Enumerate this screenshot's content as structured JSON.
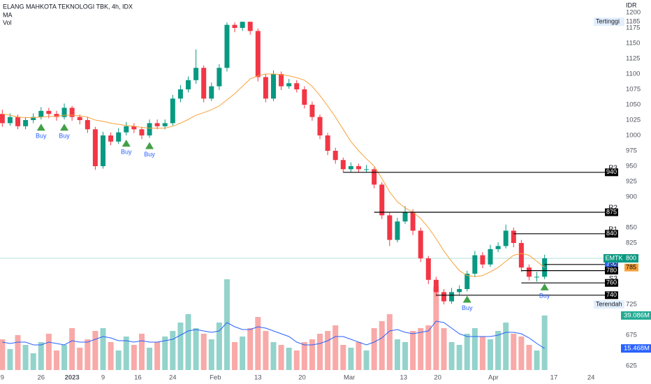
{
  "chart_data": {
    "type": "candlestick",
    "title": "ELANG MAHKOTA TEKNOLOGI TBK, 4h, IDX",
    "indicator_labels": [
      "MA",
      "Vol"
    ],
    "currency": "IDR",
    "ylim": [
      625,
      1200
    ],
    "yticks": [
      1200,
      1175,
      1150,
      1125,
      1100,
      1075,
      1050,
      1025,
      1000,
      975,
      950,
      925,
      900,
      850,
      825,
      675,
      625
    ],
    "xlim": [
      -0.3,
      79.5
    ],
    "xticks": [
      {
        "value": 0,
        "label": "9"
      },
      {
        "value": 5,
        "label": "26"
      },
      {
        "value": 9,
        "label": "2023"
      },
      {
        "value": 13,
        "label": "9"
      },
      {
        "value": 17.5,
        "label": "16"
      },
      {
        "value": 22,
        "label": "24"
      },
      {
        "value": 27.5,
        "label": "Feb"
      },
      {
        "value": 33,
        "label": "13"
      },
      {
        "value": 38.7,
        "label": "20"
      },
      {
        "value": 44.8,
        "label": "Mar"
      },
      {
        "value": 51.8,
        "label": "13"
      },
      {
        "value": 56.2,
        "label": "20"
      },
      {
        "value": 63.4,
        "label": "Apr"
      },
      {
        "value": 71.2,
        "label": "17"
      },
      {
        "value": 76,
        "label": "24"
      }
    ],
    "up_color": "#089981",
    "down_color": "#f23645",
    "ohlc": [
      [
        1035,
        1042,
        1014,
        1020
      ],
      [
        1020,
        1036,
        1016,
        1030
      ],
      [
        1030,
        1034,
        1010,
        1015
      ],
      [
        1015,
        1030,
        1010,
        1025
      ],
      [
        1025,
        1036,
        1020,
        1030
      ],
      [
        1030,
        1046,
        1026,
        1040
      ],
      [
        1040,
        1045,
        1028,
        1035
      ],
      [
        1035,
        1040,
        1024,
        1030
      ],
      [
        1030,
        1052,
        1026,
        1045
      ],
      [
        1045,
        1048,
        1024,
        1030
      ],
      [
        1030,
        1034,
        1018,
        1025
      ],
      [
        1025,
        1030,
        1004,
        1010
      ],
      [
        1010,
        1014,
        944,
        950
      ],
      [
        950,
        1006,
        946,
        1000
      ],
      [
        1000,
        1005,
        984,
        990
      ],
      [
        990,
        1012,
        986,
        1005
      ],
      [
        1005,
        1022,
        1000,
        1015
      ],
      [
        1015,
        1020,
        1004,
        1010
      ],
      [
        1010,
        1014,
        994,
        1000
      ],
      [
        1000,
        1026,
        996,
        1020
      ],
      [
        1020,
        1026,
        1010,
        1015
      ],
      [
        1015,
        1026,
        1010,
        1020
      ],
      [
        1020,
        1066,
        1016,
        1060
      ],
      [
        1060,
        1082,
        1054,
        1075
      ],
      [
        1075,
        1096,
        1070,
        1090
      ],
      [
        1090,
        1140,
        1084,
        1110
      ],
      [
        1110,
        1114,
        1054,
        1060
      ],
      [
        1060,
        1086,
        1056,
        1080
      ],
      [
        1080,
        1116,
        1074,
        1110
      ],
      [
        1110,
        1184,
        1104,
        1180
      ],
      [
        1180,
        1184,
        1168,
        1175
      ],
      [
        1175,
        1185,
        1170,
        1185
      ],
      [
        1185,
        1185,
        1164,
        1170
      ],
      [
        1170,
        1174,
        1088,
        1095
      ],
      [
        1095,
        1100,
        1054,
        1060
      ],
      [
        1060,
        1106,
        1056,
        1100
      ],
      [
        1100,
        1104,
        1074,
        1080
      ],
      [
        1080,
        1092,
        1076,
        1085
      ],
      [
        1085,
        1090,
        1070,
        1075
      ],
      [
        1075,
        1080,
        1044,
        1050
      ],
      [
        1050,
        1055,
        1024,
        1030
      ],
      [
        1030,
        1034,
        994,
        1000
      ],
      [
        1000,
        1004,
        968,
        975
      ],
      [
        975,
        980,
        954,
        960
      ],
      [
        960,
        964,
        940,
        945
      ],
      [
        945,
        956,
        940,
        950
      ],
      [
        950,
        954,
        940,
        945
      ],
      [
        945,
        952,
        940,
        945
      ],
      [
        945,
        948,
        914,
        920
      ],
      [
        920,
        924,
        864,
        870
      ],
      [
        870,
        874,
        820,
        830
      ],
      [
        830,
        866,
        826,
        860
      ],
      [
        860,
        885,
        856,
        875
      ],
      [
        875,
        880,
        838,
        845
      ],
      [
        845,
        850,
        794,
        800
      ],
      [
        800,
        804,
        758,
        765
      ],
      [
        765,
        770,
        738,
        745
      ],
      [
        745,
        750,
        725,
        730
      ],
      [
        730,
        752,
        726,
        745
      ],
      [
        745,
        756,
        740,
        750
      ],
      [
        750,
        780,
        746,
        775
      ],
      [
        775,
        812,
        770,
        805
      ],
      [
        805,
        810,
        784,
        790
      ],
      [
        790,
        822,
        786,
        815
      ],
      [
        815,
        826,
        810,
        820
      ],
      [
        820,
        855,
        816,
        845
      ],
      [
        845,
        850,
        818,
        825
      ],
      [
        825,
        830,
        778,
        785
      ],
      [
        785,
        790,
        764,
        770
      ],
      [
        770,
        778,
        762,
        770
      ],
      [
        770,
        806,
        766,
        800
      ]
    ],
    "ma": {
      "color": "#f7a13b",
      "values": [
        1035,
        1033,
        1030,
        1029,
        1029,
        1030,
        1031,
        1031,
        1033,
        1033,
        1032,
        1030,
        1025,
        1023,
        1020,
        1018,
        1016,
        1015,
        1013,
        1012,
        1012,
        1012,
        1015,
        1020,
        1026,
        1033,
        1037,
        1042,
        1048,
        1058,
        1068,
        1080,
        1092,
        1097,
        1100,
        1100,
        1099,
        1097,
        1094,
        1090,
        1080,
        1065,
        1048,
        1030,
        1010,
        990,
        975,
        962,
        950,
        930,
        908,
        892,
        882,
        875,
        865,
        850,
        832,
        812,
        795,
        780,
        772,
        770,
        772,
        778,
        785,
        795,
        805,
        808,
        805,
        795,
        785
      ]
    },
    "volume": {
      "vlim": [
        0,
        65
      ],
      "up_color": "#93d3cb",
      "down_color": "#f8a9a8",
      "values": [
        22,
        15,
        25,
        18,
        12,
        20,
        26,
        14,
        18,
        30,
        16,
        22,
        28,
        30,
        20,
        14,
        24,
        18,
        26,
        16,
        20,
        24,
        28,
        34,
        40,
        30,
        26,
        22,
        34,
        65,
        20,
        24,
        30,
        38,
        28,
        20,
        18,
        16,
        14,
        20,
        22,
        26,
        28,
        32,
        18,
        16,
        20,
        14,
        30,
        35,
        40,
        22,
        20,
        28,
        30,
        32,
        60,
        30,
        20,
        18,
        26,
        30,
        24,
        22,
        28,
        34,
        26,
        24,
        18,
        14,
        39.086
      ],
      "last_label": "39.086M",
      "last_color": "#22ab94"
    },
    "volume_ma": {
      "color": "#2962ff",
      "values": [
        20,
        19,
        20,
        20,
        18,
        18,
        20,
        19,
        18,
        21,
        20,
        20,
        22,
        24,
        23,
        21,
        21,
        20,
        21,
        20,
        20,
        21,
        22,
        25,
        28,
        29,
        28,
        27,
        28,
        34,
        31,
        29,
        29,
        31,
        30,
        28,
        26,
        24,
        20,
        18,
        18,
        19,
        21,
        24,
        24,
        22,
        20,
        18,
        20,
        23,
        28,
        29,
        27,
        26,
        27,
        28,
        35,
        34,
        30,
        26,
        24,
        24,
        24,
        24,
        25,
        27,
        27,
        26,
        23,
        19,
        15.468
      ],
      "last_label": "15.468M"
    },
    "levels": [
      {
        "name": "R3",
        "value": 940,
        "start": 44
      },
      {
        "name": "R2",
        "value": 875,
        "start": 48
      },
      {
        "name": "R1",
        "value": 840,
        "start": 66
      },
      {
        "name": "S1",
        "value": 790,
        "start": 70,
        "color": "#2962ff"
      },
      {
        "name": "S2",
        "value": 780,
        "start": 67
      },
      {
        "name": "S3",
        "value": 760,
        "start": 67
      },
      {
        "name": null,
        "value": 740,
        "start": 56
      }
    ],
    "signals": [
      {
        "index": 5,
        "label": "Buy"
      },
      {
        "index": 8,
        "label": "Buy"
      },
      {
        "index": 16,
        "label": "Buy"
      },
      {
        "index": 19,
        "label": "Buy"
      },
      {
        "index": 60,
        "label": "Buy"
      },
      {
        "index": 70,
        "label": "Buy"
      }
    ],
    "signal_color": "#43a047",
    "last": {
      "symbol": "EMTK",
      "value": 800
    },
    "high_tag": {
      "label": "Tertinggi",
      "value": 1185
    },
    "low_tag": {
      "label": "Terendah",
      "value": 725
    }
  }
}
